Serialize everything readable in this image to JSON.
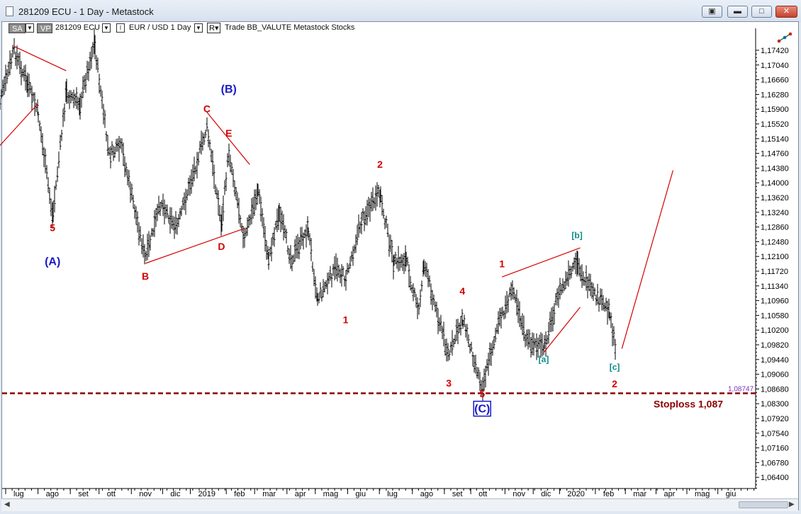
{
  "window": {
    "title": "281209 ECU - 1 Day - Metastock",
    "buttons": [
      "restore-down",
      "minimize",
      "maximize",
      "close"
    ]
  },
  "toolbar": {
    "sa_label": "SA",
    "vp_label": "VP",
    "symbol": "281209 ECU",
    "pair_info": "EUR / USD  1 Day",
    "r_label": "R",
    "trade_text": "Trade  BB_VALUTE  Metastock  Stocks",
    "indicator_icon": "drawing-tools-icon"
  },
  "colors": {
    "bars": "#000000",
    "wave_labels": "#d40000",
    "major_labels": "#1a1ac8",
    "sub_labels": "#0e8a8a",
    "trendlines": "#d40000",
    "stoploss": "#8b0000",
    "stoploss_price": "#7b2fbf"
  },
  "chart_data": {
    "type": "ohlc_bar",
    "title": "281209 ECU - 1 Day",
    "instrument": "EUR / USD",
    "timeframe": "1 Day",
    "x_tick_labels": [
      "lug",
      "ago",
      "set",
      "ott",
      "nov",
      "dic",
      "2019",
      "feb",
      "mar",
      "apr",
      "mag",
      "giu",
      "lug",
      "ago",
      "set",
      "ott",
      "nov",
      "dic",
      "2020",
      "feb",
      "mar",
      "apr",
      "mag",
      "giu"
    ],
    "y_tick_labels": [
      "1,17420",
      "1,17040",
      "1,16660",
      "1,16280",
      "1,15900",
      "1,15520",
      "1,15140",
      "1,14760",
      "1,14380",
      "1,14000",
      "1,13620",
      "1,13240",
      "1,12860",
      "1,12480",
      "1,12100",
      "1,11720",
      "1,11340",
      "1,10960",
      "1,10580",
      "1,10200",
      "1,09820",
      "1,09440",
      "1,09060",
      "1,08680",
      "1,08300",
      "1,07920",
      "1,07540",
      "1,07160",
      "1,06780",
      "1,06400"
    ],
    "ylim": [
      1.0636,
      1.1792
    ],
    "grid": false,
    "price_path": [
      {
        "date": "2018-06-20",
        "close": 1.157
      },
      {
        "date": "2018-07-01",
        "close": 1.168
      },
      {
        "date": "2018-07-09",
        "close": 1.176
      },
      {
        "date": "2018-07-22",
        "close": 1.167
      },
      {
        "date": "2018-08-01",
        "close": 1.16
      },
      {
        "date": "2018-08-15",
        "close": 1.133
      },
      {
        "date": "2018-08-28",
        "close": 1.165
      },
      {
        "date": "2018-09-10",
        "close": 1.162
      },
      {
        "date": "2018-09-24",
        "close": 1.178
      },
      {
        "date": "2018-10-08",
        "close": 1.149
      },
      {
        "date": "2018-10-20",
        "close": 1.151
      },
      {
        "date": "2018-11-12",
        "close": 1.122
      },
      {
        "date": "2018-11-27",
        "close": 1.137
      },
      {
        "date": "2018-12-12",
        "close": 1.13
      },
      {
        "date": "2019-01-10",
        "close": 1.156
      },
      {
        "date": "2019-01-24",
        "close": 1.131
      },
      {
        "date": "2019-01-31",
        "close": 1.15
      },
      {
        "date": "2019-02-15",
        "close": 1.127
      },
      {
        "date": "2019-02-28",
        "close": 1.14
      },
      {
        "date": "2019-03-10",
        "close": 1.122
      },
      {
        "date": "2019-03-20",
        "close": 1.134
      },
      {
        "date": "2019-04-01",
        "close": 1.122
      },
      {
        "date": "2019-04-17",
        "close": 1.13
      },
      {
        "date": "2019-04-26",
        "close": 1.112
      },
      {
        "date": "2019-05-15",
        "close": 1.12
      },
      {
        "date": "2019-05-23",
        "close": 1.117
      },
      {
        "date": "2019-06-07",
        "close": 1.132
      },
      {
        "date": "2019-06-25",
        "close": 1.139
      },
      {
        "date": "2019-07-08",
        "close": 1.121
      },
      {
        "date": "2019-07-20",
        "close": 1.122
      },
      {
        "date": "2019-08-01",
        "close": 1.108
      },
      {
        "date": "2019-08-06",
        "close": 1.121
      },
      {
        "date": "2019-08-30",
        "close": 1.097
      },
      {
        "date": "2019-09-12",
        "close": 1.107
      },
      {
        "date": "2019-10-01",
        "close": 1.089
      },
      {
        "date": "2019-10-15",
        "close": 1.104
      },
      {
        "date": "2019-10-31",
        "close": 1.115
      },
      {
        "date": "2019-11-12",
        "close": 1.101
      },
      {
        "date": "2019-11-29",
        "close": 1.099
      },
      {
        "date": "2019-12-13",
        "close": 1.113
      },
      {
        "date": "2019-12-31",
        "close": 1.121
      },
      {
        "date": "2020-01-15",
        "close": 1.113
      },
      {
        "date": "2020-01-31",
        "close": 1.109
      },
      {
        "date": "2020-02-07",
        "close": 1.096
      }
    ],
    "wave_labels": [
      {
        "text": "5",
        "date": "2018-08-15",
        "price": 1.1293,
        "style": "red"
      },
      {
        "text": "(A)",
        "date": "2018-08-15",
        "price": 1.1205,
        "style": "blue"
      },
      {
        "text": "B",
        "date": "2018-11-12",
        "price": 1.1168,
        "style": "red"
      },
      {
        "text": "C",
        "date": "2019-01-10",
        "price": 1.16,
        "style": "red"
      },
      {
        "text": "(B)",
        "date": "2019-01-31",
        "price": 1.165,
        "style": "blue"
      },
      {
        "text": "E",
        "date": "2019-01-31",
        "price": 1.1537,
        "style": "red"
      },
      {
        "text": "D",
        "date": "2019-01-24",
        "price": 1.1245,
        "style": "red"
      },
      {
        "text": "1",
        "date": "2019-05-23",
        "price": 1.1056,
        "style": "red"
      },
      {
        "text": "2",
        "date": "2019-06-25",
        "price": 1.1457,
        "style": "red"
      },
      {
        "text": "3",
        "date": "2019-08-30",
        "price": 1.0892,
        "style": "red"
      },
      {
        "text": "4",
        "date": "2019-09-12",
        "price": 1.113,
        "style": "red"
      },
      {
        "text": "5",
        "date": "2019-10-01",
        "price": 1.0865,
        "style": "red"
      },
      {
        "text": "(C)",
        "date": "2019-10-01",
        "price": 1.0825,
        "style": "boxed-blue"
      },
      {
        "text": "1",
        "date": "2019-10-20",
        "price": 1.12,
        "style": "red"
      },
      {
        "text": "[a]",
        "date": "2019-11-29",
        "price": 1.0955,
        "style": "teal"
      },
      {
        "text": "[b]",
        "date": "2019-12-31",
        "price": 1.1275,
        "style": "teal"
      },
      {
        "text": "[c]",
        "date": "2020-02-05",
        "price": 1.0935,
        "style": "teal"
      },
      {
        "text": "2",
        "date": "2020-02-05",
        "price": 1.089,
        "style": "red"
      }
    ],
    "trendlines": [
      {
        "from": {
          "date": "2018-06-20",
          "price": 1.1498
        },
        "to": {
          "date": "2018-08-01",
          "price": 1.1622
        }
      },
      {
        "from": {
          "date": "2018-07-09",
          "price": 1.177
        },
        "to": {
          "date": "2018-08-28",
          "price": 1.1707
        }
      },
      {
        "from": {
          "date": "2018-11-12",
          "price": 1.121
        },
        "to": {
          "date": "2019-02-15",
          "price": 1.13
        }
      },
      {
        "from": {
          "date": "2019-01-10",
          "price": 1.16
        },
        "to": {
          "date": "2019-02-20",
          "price": 1.1465
        }
      },
      {
        "from": {
          "date": "2019-10-20",
          "price": 1.1175
        },
        "to": {
          "date": "2020-01-03",
          "price": 1.125
        }
      },
      {
        "from": {
          "date": "2019-11-29",
          "price": 1.098
        },
        "to": {
          "date": "2020-01-03",
          "price": 1.1097
        }
      },
      {
        "from": {
          "date": "2020-02-12",
          "price": 1.099
        },
        "to": {
          "date": "2020-04-01",
          "price": 1.145
        }
      }
    ],
    "stoploss": {
      "price": 1.08747,
      "price_label": "1,08747",
      "label": "Stoploss 1,087"
    }
  }
}
